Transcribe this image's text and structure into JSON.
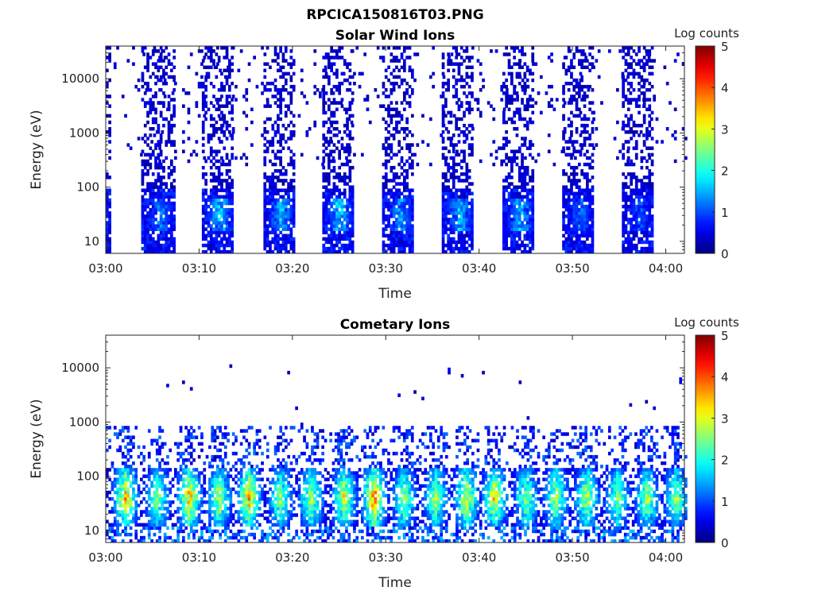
{
  "figure_title": "RPCICA150816T03.PNG",
  "colors": {
    "colormap": "jet",
    "axis": "#262626",
    "background": "#ffffff"
  },
  "chart_data": [
    {
      "type": "heatmap",
      "title": "Solar Wind Ions",
      "xlabel": "Time",
      "ylabel": "Energy (eV)",
      "yscale": "log",
      "ylim": [
        6,
        40000
      ],
      "xlim": [
        "03:00",
        "04:02"
      ],
      "xticks": [
        "03:00",
        "03:10",
        "03:20",
        "03:30",
        "03:40",
        "03:50",
        "04:00"
      ],
      "yticks": [
        10,
        100,
        1000,
        10000
      ],
      "ytick_labels": [
        "10",
        "100",
        "1000",
        "10000"
      ],
      "colorbar": {
        "label": "Log counts",
        "range": [
          0,
          5
        ],
        "ticks": [
          "0",
          "1",
          "2",
          "3",
          "4",
          "5"
        ]
      },
      "sweeps": [
        {
          "start_min": 0.0,
          "end_min": 0.3,
          "peak_log_counts": 1.2
        },
        {
          "start_min": 3.8,
          "end_min": 7.3,
          "peak_log_counts": 1.6
        },
        {
          "start_min": 10.3,
          "end_min": 13.6,
          "peak_log_counts": 2.0
        },
        {
          "start_min": 16.9,
          "end_min": 20.1,
          "peak_log_counts": 2.0
        },
        {
          "start_min": 23.2,
          "end_min": 26.4,
          "peak_log_counts": 2.2
        },
        {
          "start_min": 29.6,
          "end_min": 32.9,
          "peak_log_counts": 1.8
        },
        {
          "start_min": 36.0,
          "end_min": 39.3,
          "peak_log_counts": 2.0
        },
        {
          "start_min": 42.5,
          "end_min": 45.8,
          "peak_log_counts": 2.0
        },
        {
          "start_min": 48.9,
          "end_min": 52.2,
          "peak_log_counts": 1.5
        },
        {
          "start_min": 55.3,
          "end_min": 58.6,
          "peak_log_counts": 1.3
        }
      ],
      "core_energy_ev": [
        15,
        60
      ],
      "background_energy_ev": [
        200,
        40000
      ]
    },
    {
      "type": "heatmap",
      "title": "Cometary Ions",
      "xlabel": "Time",
      "ylabel": "Energy (eV)",
      "yscale": "log",
      "ylim": [
        6,
        40000
      ],
      "xlim": [
        "03:00",
        "04:02"
      ],
      "xticks": [
        "03:00",
        "03:10",
        "03:20",
        "03:30",
        "03:40",
        "03:50",
        "04:00"
      ],
      "yticks": [
        10,
        100,
        1000,
        10000
      ],
      "ytick_labels": [
        "10",
        "100",
        "1000",
        "10000"
      ],
      "colorbar": {
        "label": "Log counts",
        "range": [
          0,
          5
        ],
        "ticks": [
          "0",
          "1",
          "2",
          "3",
          "4",
          "5"
        ]
      },
      "sweeps": [
        {
          "center_min": 2.0,
          "peak_log_counts": 3.9
        },
        {
          "center_min": 5.4,
          "peak_log_counts": 3.0
        },
        {
          "center_min": 8.8,
          "peak_log_counts": 3.9
        },
        {
          "center_min": 12.0,
          "peak_log_counts": 3.3
        },
        {
          "center_min": 15.2,
          "peak_log_counts": 3.9
        },
        {
          "center_min": 18.6,
          "peak_log_counts": 3.0
        },
        {
          "center_min": 21.9,
          "peak_log_counts": 3.2
        },
        {
          "center_min": 25.4,
          "peak_log_counts": 3.4
        },
        {
          "center_min": 28.6,
          "peak_log_counts": 4.2
        },
        {
          "center_min": 31.8,
          "peak_log_counts": 3.0
        },
        {
          "center_min": 35.2,
          "peak_log_counts": 3.1
        },
        {
          "center_min": 38.5,
          "peak_log_counts": 3.6
        },
        {
          "center_min": 41.5,
          "peak_log_counts": 3.6
        },
        {
          "center_min": 44.9,
          "peak_log_counts": 3.0
        },
        {
          "center_min": 48.1,
          "peak_log_counts": 3.2
        },
        {
          "center_min": 51.4,
          "peak_log_counts": 3.2
        },
        {
          "center_min": 54.7,
          "peak_log_counts": 3.0
        },
        {
          "center_min": 57.9,
          "peak_log_counts": 3.1
        },
        {
          "center_min": 61.0,
          "peak_log_counts": 3.0
        }
      ],
      "core_energy_ev": [
        10,
        150
      ],
      "background_energy_ev": [
        200,
        10000
      ]
    }
  ]
}
